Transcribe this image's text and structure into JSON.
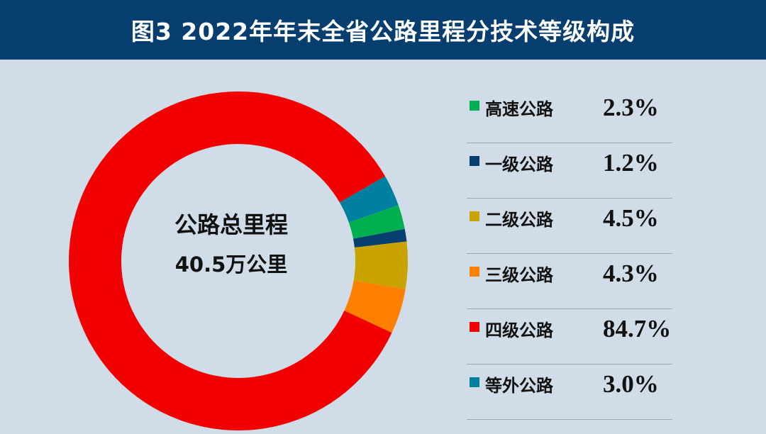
{
  "header": {
    "title": "图3  2022年年末全省公路里程分技术等级构成"
  },
  "center": {
    "title": "公路总里程",
    "value": "40.5万公里"
  },
  "legend": [
    {
      "label": "高速公路",
      "value": "2.3%",
      "color": "#00b050"
    },
    {
      "label": "一级公路",
      "value": "1.2%",
      "color": "#073e70"
    },
    {
      "label": "二级公路",
      "value": "4.5%",
      "color": "#c9a300"
    },
    {
      "label": "三级公路",
      "value": "4.3%",
      "color": "#ff7f00"
    },
    {
      "label": "四级公路",
      "value": "84.7%",
      "color": "#f20000"
    },
    {
      "label": "等外公路",
      "value": "3.0%",
      "color": "#0080a0"
    }
  ],
  "chart_data": {
    "type": "pie",
    "title": "图3  2022年年末全省公路里程分技术等级构成",
    "categories": [
      "高速公路",
      "一级公路",
      "二级公路",
      "三级公路",
      "四级公路",
      "等外公路"
    ],
    "values": [
      2.3,
      1.2,
      4.5,
      4.3,
      84.7,
      3.0
    ],
    "colors": [
      "#00b050",
      "#073e70",
      "#c9a300",
      "#ff7f00",
      "#f20000",
      "#0080a0"
    ],
    "donut": true,
    "center_label": [
      "公路总里程",
      "40.5万公里"
    ],
    "legend_position": "right"
  }
}
